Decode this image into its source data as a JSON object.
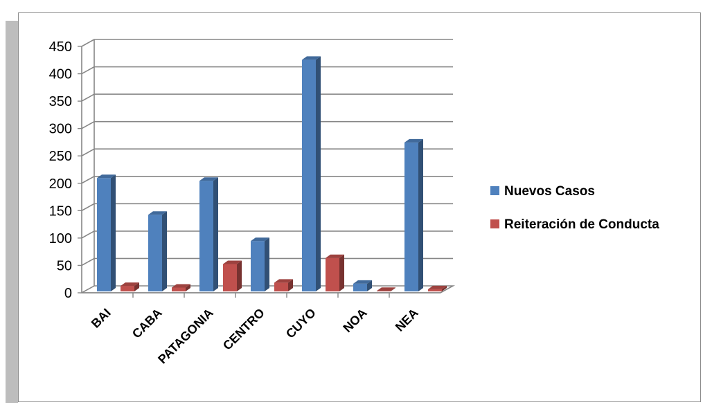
{
  "chart_data": {
    "type": "bar",
    "categories": [
      "BAI",
      "CABA",
      "PATAGONIA",
      "CENTRO",
      "CUYO",
      "NOA",
      "NEA"
    ],
    "series": [
      {
        "name": "Nuevos Casos",
        "values": [
          207,
          140,
          202,
          92,
          423,
          14,
          272
        ],
        "color": "#4f81bd"
      },
      {
        "name": "Reiteración de Conducta",
        "values": [
          10,
          7,
          50,
          16,
          61,
          1,
          4
        ],
        "color": "#c0504d"
      }
    ],
    "y_ticks": [
      "0",
      "50",
      "100",
      "150",
      "200",
      "250",
      "300",
      "350",
      "400",
      "450"
    ],
    "ylim": [
      0,
      450
    ],
    "grid": true,
    "three_d": true,
    "legend_position": "right",
    "title": "",
    "xlabel": "",
    "ylabel": ""
  }
}
